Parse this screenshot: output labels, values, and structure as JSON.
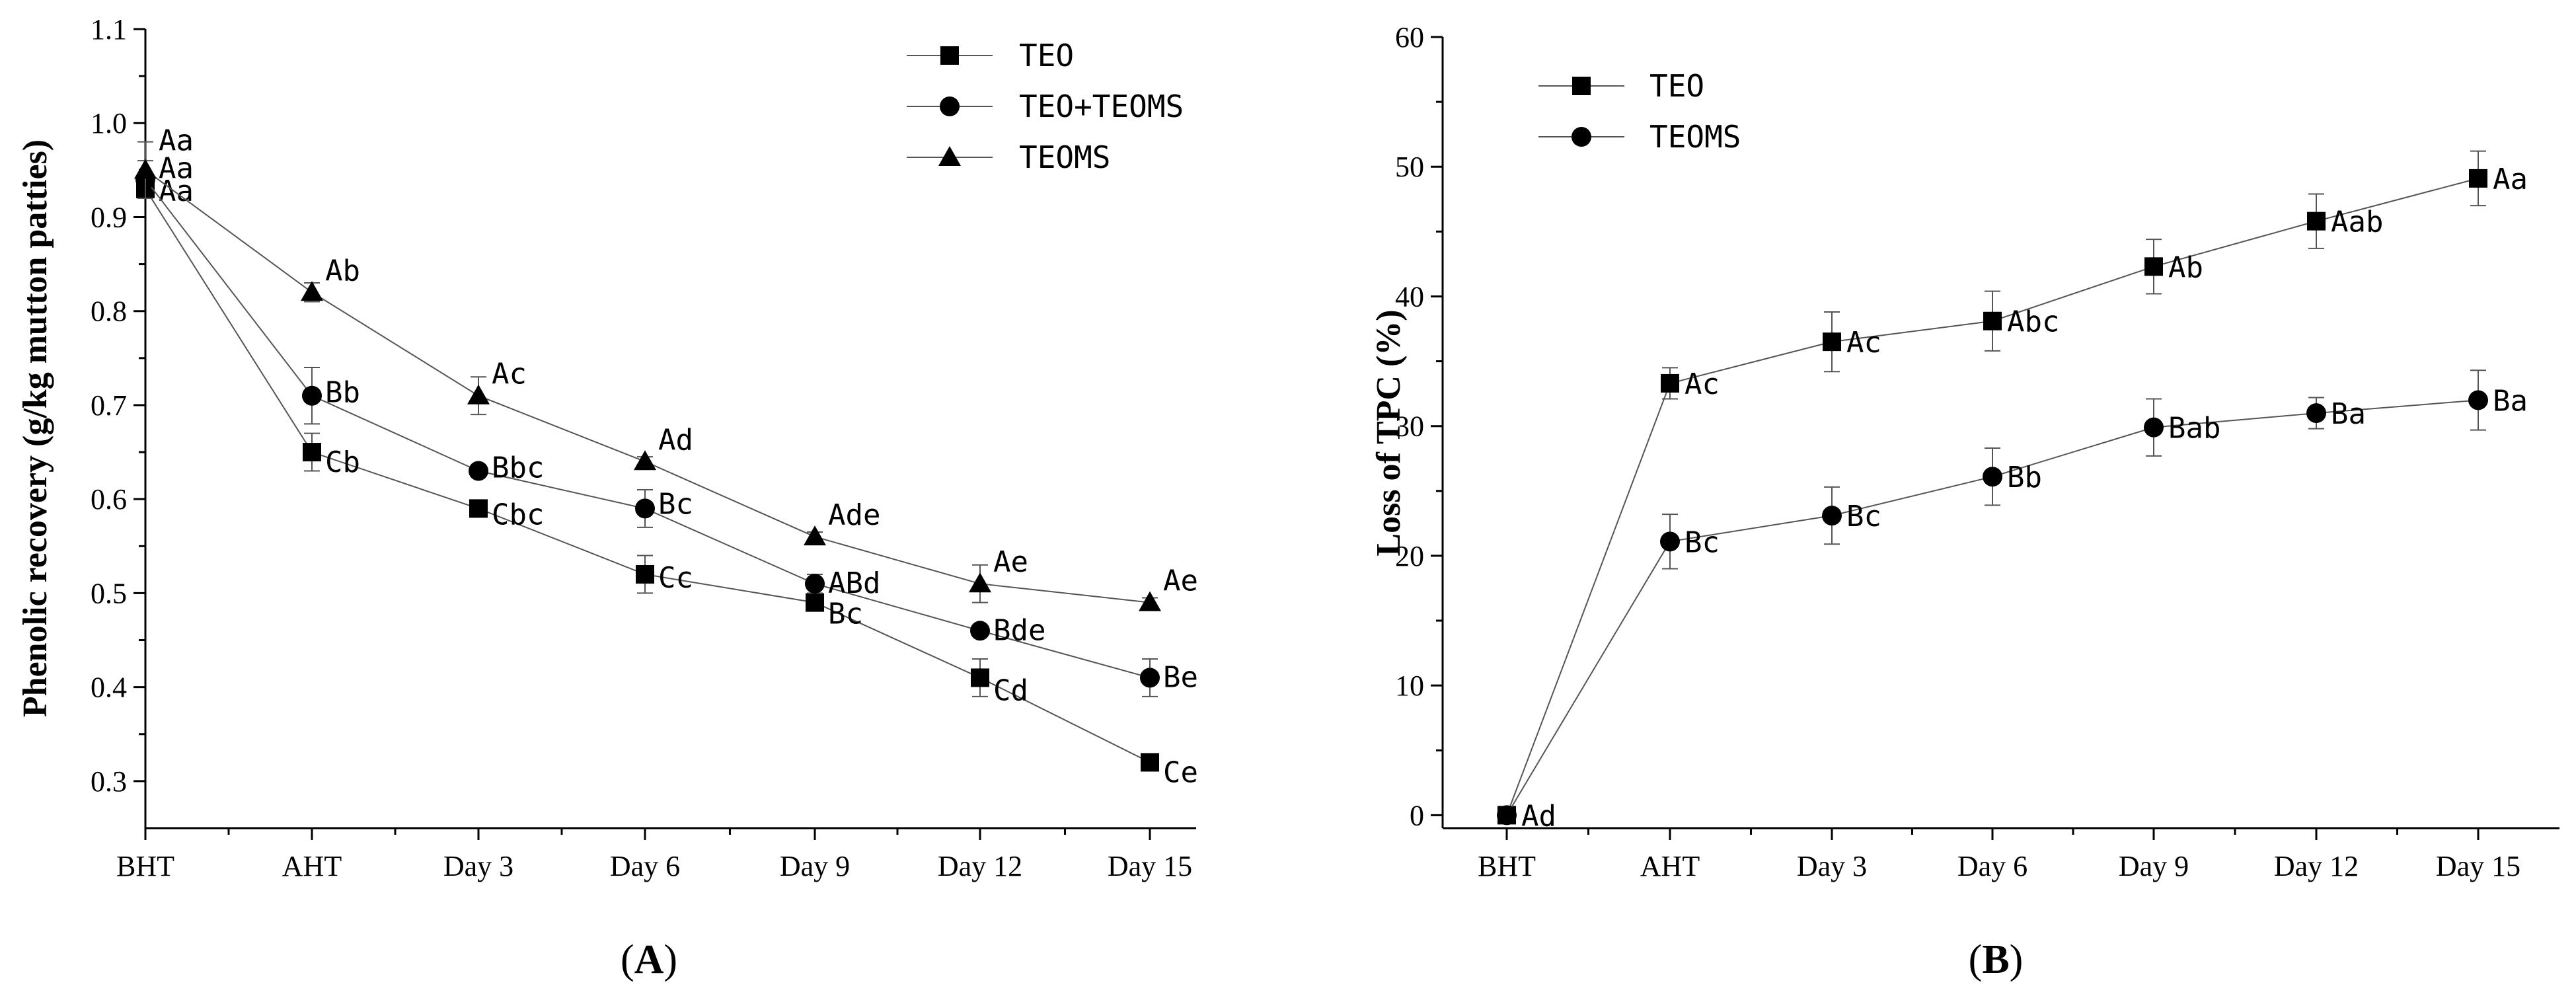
{
  "chart_data": [
    {
      "type": "line",
      "panel_label": "A",
      "xlabel": "",
      "ylabel": "Phenolic recovery (g/kg  mutton patties)",
      "categories": [
        "BHT",
        "AHT",
        "Day 3",
        "Day 6",
        "Day 9",
        "Day 12",
        "Day 15"
      ],
      "ylim": [
        0.25,
        1.1
      ],
      "yticks": [
        "0.3",
        "0.4",
        "0.5",
        "0.6",
        "0.7",
        "0.8",
        "0.9",
        "1.0",
        "1.1"
      ],
      "legend_position": "top-right",
      "series": [
        {
          "name": "TEO",
          "marker": "square",
          "values": [
            0.93,
            0.65,
            0.59,
            0.52,
            0.49,
            0.41,
            0.32
          ],
          "errors": [
            0.01,
            0.02,
            0.005,
            0.02,
            0.005,
            0.02,
            0.005
          ],
          "labels": [
            "Aa",
            "Cb",
            "Cbc",
            "Cc",
            "Bc",
            "Cd",
            "Ce"
          ]
        },
        {
          "name": "TEO+TEOMS",
          "marker": "circle",
          "values": [
            0.94,
            0.71,
            0.63,
            0.59,
            0.51,
            0.46,
            0.41
          ],
          "errors": [
            0.02,
            0.03,
            0.005,
            0.02,
            0.01,
            0.005,
            0.02
          ],
          "labels": [
            "Aa",
            "Bb",
            "Bbc",
            "Bc",
            "ABd",
            "Bde",
            "Be"
          ]
        },
        {
          "name": "TEOMS",
          "marker": "triangle",
          "values": [
            0.95,
            0.82,
            0.71,
            0.64,
            0.56,
            0.51,
            0.49
          ],
          "errors": [
            0.03,
            0.01,
            0.02,
            0.005,
            0.005,
            0.02,
            0.005
          ],
          "labels": [
            "Aa",
            "Ab",
            "Ac",
            "Ad",
            "Ade",
            "Ae",
            "Ae"
          ]
        }
      ]
    },
    {
      "type": "line",
      "panel_label": "B",
      "xlabel": "",
      "ylabel": "Loss of TPC (%)",
      "categories": [
        "BHT",
        "AHT",
        "Day 3",
        "Day 6",
        "Day 9",
        "Day 12",
        "Day 15"
      ],
      "ylim": [
        -1,
        60
      ],
      "yticks": [
        "0",
        "10",
        "20",
        "30",
        "40",
        "50",
        "60"
      ],
      "legend_position": "top-left",
      "series": [
        {
          "name": "TEO",
          "marker": "square",
          "values": [
            0,
            33.3,
            36.5,
            38.1,
            42.3,
            45.8,
            49.1
          ],
          "errors": [
            0.3,
            1.2,
            2.3,
            2.3,
            2.1,
            2.1,
            2.1
          ],
          "labels": [
            "Ad",
            "Ac",
            "Ac",
            "Abc",
            "Ab",
            "Aab",
            "Aa"
          ]
        },
        {
          "name": "TEOMS",
          "marker": "circle",
          "values": [
            0,
            21.1,
            23.1,
            26.1,
            29.9,
            31.0,
            32.0
          ],
          "errors": [
            0.3,
            2.1,
            2.2,
            2.2,
            2.2,
            1.2,
            2.3
          ],
          "labels": [
            "",
            "Bc",
            "Bc",
            "Bb",
            "Bab",
            "Ba",
            "Ba"
          ]
        }
      ]
    }
  ]
}
